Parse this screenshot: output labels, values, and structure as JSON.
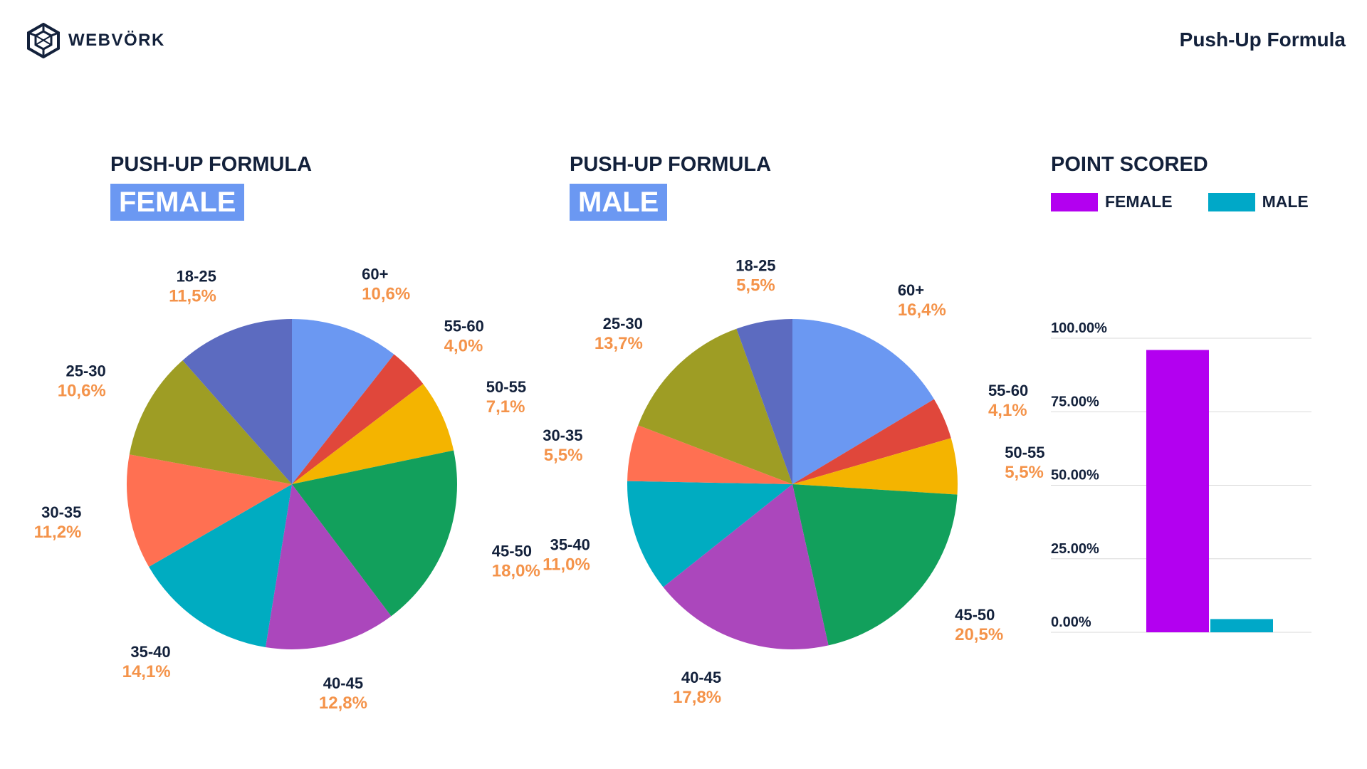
{
  "header": {
    "brand": "WEBVÖRK",
    "brand_icon": "webvork-cube-logo-icon",
    "title": "Push-Up Formula"
  },
  "colors": {
    "badge": "#6b98f2",
    "category_text": "#13213b",
    "percent_text": "#f4934a",
    "female_bar": "#b300f0",
    "male_bar": "#00a8c8"
  },
  "panels": {
    "female": {
      "title": "PUSH-UP FORMULA",
      "badge": "FEMALE"
    },
    "male": {
      "title": "PUSH-UP FORMULA",
      "badge": "MALE"
    },
    "points": {
      "title": "POINT SCORED",
      "legend": [
        {
          "label": "FEMALE",
          "color": "#b300f0"
        },
        {
          "label": "MALE",
          "color": "#00a8c8"
        }
      ]
    }
  },
  "chart_data": [
    {
      "type": "pie",
      "title": "PUSH-UP FORMULA FEMALE",
      "categories": [
        "60+",
        "55-60",
        "50-55",
        "45-50",
        "40-45",
        "35-40",
        "30-35",
        "25-30",
        "18-25"
      ],
      "values": [
        10.6,
        4.0,
        7.1,
        18.0,
        12.8,
        14.1,
        11.2,
        10.6,
        11.5
      ],
      "labels": [
        "10,6%",
        "4,0%",
        "7,1%",
        "18,0%",
        "12,8%",
        "14,1%",
        "11,2%",
        "10,6%",
        "11,5%"
      ],
      "colors": [
        "#6b98f2",
        "#e0473b",
        "#f4b400",
        "#12a05c",
        "#ab47bc",
        "#00acc1",
        "#ff7052",
        "#9e9d24",
        "#5c6bc0"
      ]
    },
    {
      "type": "pie",
      "title": "PUSH-UP FORMULA MALE",
      "categories": [
        "60+",
        "55-60",
        "50-55",
        "45-50",
        "40-45",
        "35-40",
        "30-35",
        "25-30",
        "18-25"
      ],
      "values": [
        16.4,
        4.1,
        5.5,
        20.5,
        17.8,
        11.0,
        5.5,
        13.7,
        5.5
      ],
      "labels": [
        "16,4%",
        "4,1%",
        "5,5%",
        "20,5%",
        "17,8%",
        "11,0%",
        "5,5%",
        "13,7%",
        "5,5%"
      ],
      "colors": [
        "#6b98f2",
        "#e0473b",
        "#f4b400",
        "#12a05c",
        "#ab47bc",
        "#00acc1",
        "#ff7052",
        "#9e9d24",
        "#5c6bc0"
      ]
    },
    {
      "type": "bar",
      "title": "POINT SCORED",
      "categories": [
        "FEMALE",
        "MALE"
      ],
      "values": [
        96,
        4.5
      ],
      "colors": [
        "#b300f0",
        "#00a8c8"
      ],
      "ylim": [
        0,
        100
      ],
      "yticks": [
        0,
        25,
        50,
        75,
        100
      ],
      "ytick_labels": [
        "0.00%",
        "25.00%",
        "50.00%",
        "75.00%",
        "100.00%"
      ],
      "grid": true,
      "legend": "top"
    }
  ]
}
